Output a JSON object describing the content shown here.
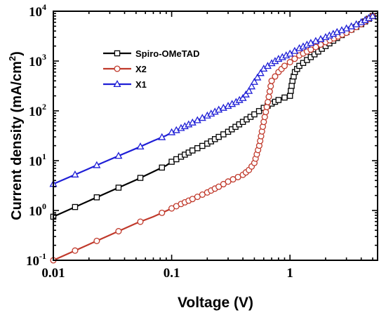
{
  "chart_data": {
    "type": "scatter",
    "title": "",
    "xlabel": "Voltage (V)",
    "ylabel": "Current density (mA/cm²)",
    "ylabel_parts": {
      "prefix": "Current density (mA/cm",
      "sup": "2",
      "suffix": ")"
    },
    "xscale": "log",
    "yscale": "log",
    "xlim": [
      0.01,
      5.5
    ],
    "ylim": [
      0.1,
      10000
    ],
    "grid": false,
    "legend_position": "top-left",
    "x_ticks": [
      {
        "value": 0.01,
        "label": "0.01"
      },
      {
        "value": 0.1,
        "label": "0.1"
      },
      {
        "value": 1,
        "label": "1"
      }
    ],
    "y_ticks": [
      {
        "value": 0.1,
        "base": "10",
        "exp": "-1"
      },
      {
        "value": 1,
        "base": "10",
        "exp": "0"
      },
      {
        "value": 10,
        "base": "10",
        "exp": "1"
      },
      {
        "value": 100,
        "base": "10",
        "exp": "2"
      },
      {
        "value": 1000,
        "base": "10",
        "exp": "3"
      },
      {
        "value": 10000,
        "base": "10",
        "exp": "4"
      }
    ],
    "series": [
      {
        "name": "Spiro-OMeTAD",
        "color": "#000000",
        "marker": "square",
        "x": [
          0.01,
          0.03,
          0.05,
          0.07,
          0.09,
          0.1,
          0.12,
          0.15,
          0.2,
          0.25,
          0.3,
          0.4,
          0.5,
          0.6,
          0.7,
          0.8,
          0.9,
          1.0,
          1.05,
          1.1,
          1.2,
          1.5,
          2.0,
          2.5,
          3.0,
          4.0,
          5.0
        ],
        "y": [
          0.75,
          2.4,
          4.1,
          6.0,
          8.0,
          9.5,
          12,
          16,
          22,
          30,
          38,
          60,
          85,
          115,
          140,
          165,
          185,
          200,
          400,
          600,
          800,
          1200,
          2000,
          2900,
          3800,
          5500,
          8000
        ]
      },
      {
        "name": "X2",
        "color": "#c0392b",
        "marker": "circle",
        "x": [
          0.01,
          0.03,
          0.05,
          0.07,
          0.09,
          0.1,
          0.12,
          0.15,
          0.2,
          0.25,
          0.3,
          0.4,
          0.45,
          0.5,
          0.55,
          0.6,
          0.65,
          0.7,
          0.8,
          0.9,
          1.0,
          1.2,
          1.5,
          2.0,
          3.0,
          4.0,
          5.0
        ],
        "y": [
          0.1,
          0.32,
          0.55,
          0.75,
          0.98,
          1.1,
          1.35,
          1.7,
          2.3,
          3.0,
          3.8,
          5.2,
          6.5,
          9.0,
          20,
          60,
          150,
          400,
          600,
          800,
          950,
          1300,
          1700,
          2400,
          3700,
          5500,
          8000
        ]
      },
      {
        "name": "X1",
        "color": "#1f1fd6",
        "marker": "triangle",
        "x": [
          0.01,
          0.03,
          0.05,
          0.07,
          0.09,
          0.1,
          0.12,
          0.15,
          0.2,
          0.25,
          0.3,
          0.35,
          0.4,
          0.45,
          0.5,
          0.6,
          0.7,
          0.8,
          1.0,
          1.2,
          1.5,
          2.0,
          2.5,
          3.0,
          4.0,
          5.0
        ],
        "y": [
          3.4,
          10.5,
          17.5,
          25,
          32,
          37,
          45,
          58,
          80,
          105,
          125,
          150,
          180,
          250,
          380,
          700,
          900,
          1100,
          1400,
          1800,
          2300,
          3000,
          3800,
          4500,
          6000,
          8000
        ]
      }
    ]
  }
}
